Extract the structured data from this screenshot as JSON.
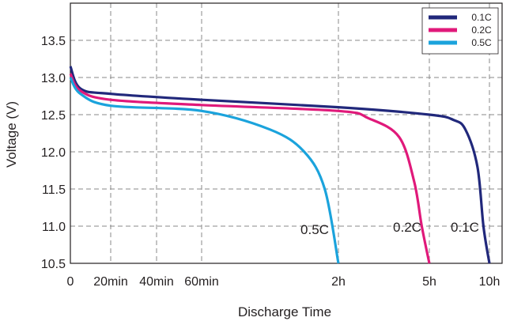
{
  "chart_data": {
    "type": "line",
    "xlabel": "Discharge Time",
    "ylabel": "Voltage (V)",
    "ylim": [
      10.5,
      14.0
    ],
    "y_ticks": [
      "10.5",
      "11.0",
      "11.5",
      "12.0",
      "12.5",
      "13.0",
      "13.5"
    ],
    "x_ticks": [
      "0",
      "20min",
      "40min",
      "60min",
      "2h",
      "5h",
      "10h"
    ],
    "grid": true,
    "legend_position": "top-right",
    "series": [
      {
        "name": "0.1C",
        "color": "#21287b",
        "x": [
          "0",
          "5min",
          "20min",
          "60min",
          "2h",
          "5h",
          "7h",
          "8h",
          "9h",
          "9.5h",
          "10h"
        ],
        "values": [
          13.15,
          12.85,
          12.78,
          12.7,
          12.6,
          12.5,
          12.43,
          12.3,
          11.8,
          11.0,
          10.5
        ]
      },
      {
        "name": "0.2C",
        "color": "#e0197a",
        "x": [
          "0",
          "5min",
          "20min",
          "60min",
          "2h",
          "3h",
          "4h",
          "4.5h",
          "4.75h",
          "5h"
        ],
        "values": [
          13.05,
          12.82,
          12.7,
          12.63,
          12.55,
          12.45,
          12.2,
          11.6,
          11.0,
          10.5
        ]
      },
      {
        "name": "0.5C",
        "color": "#1ba3dc",
        "x": [
          "0",
          "5min",
          "20min",
          "60min",
          "1.5h",
          "1.75h",
          "1.9h",
          "2h"
        ],
        "values": [
          13.0,
          12.78,
          12.62,
          12.55,
          12.3,
          12.0,
          11.5,
          10.5
        ]
      }
    ],
    "annotations": [
      "0.5C",
      "0.2C",
      "0.1C"
    ]
  }
}
